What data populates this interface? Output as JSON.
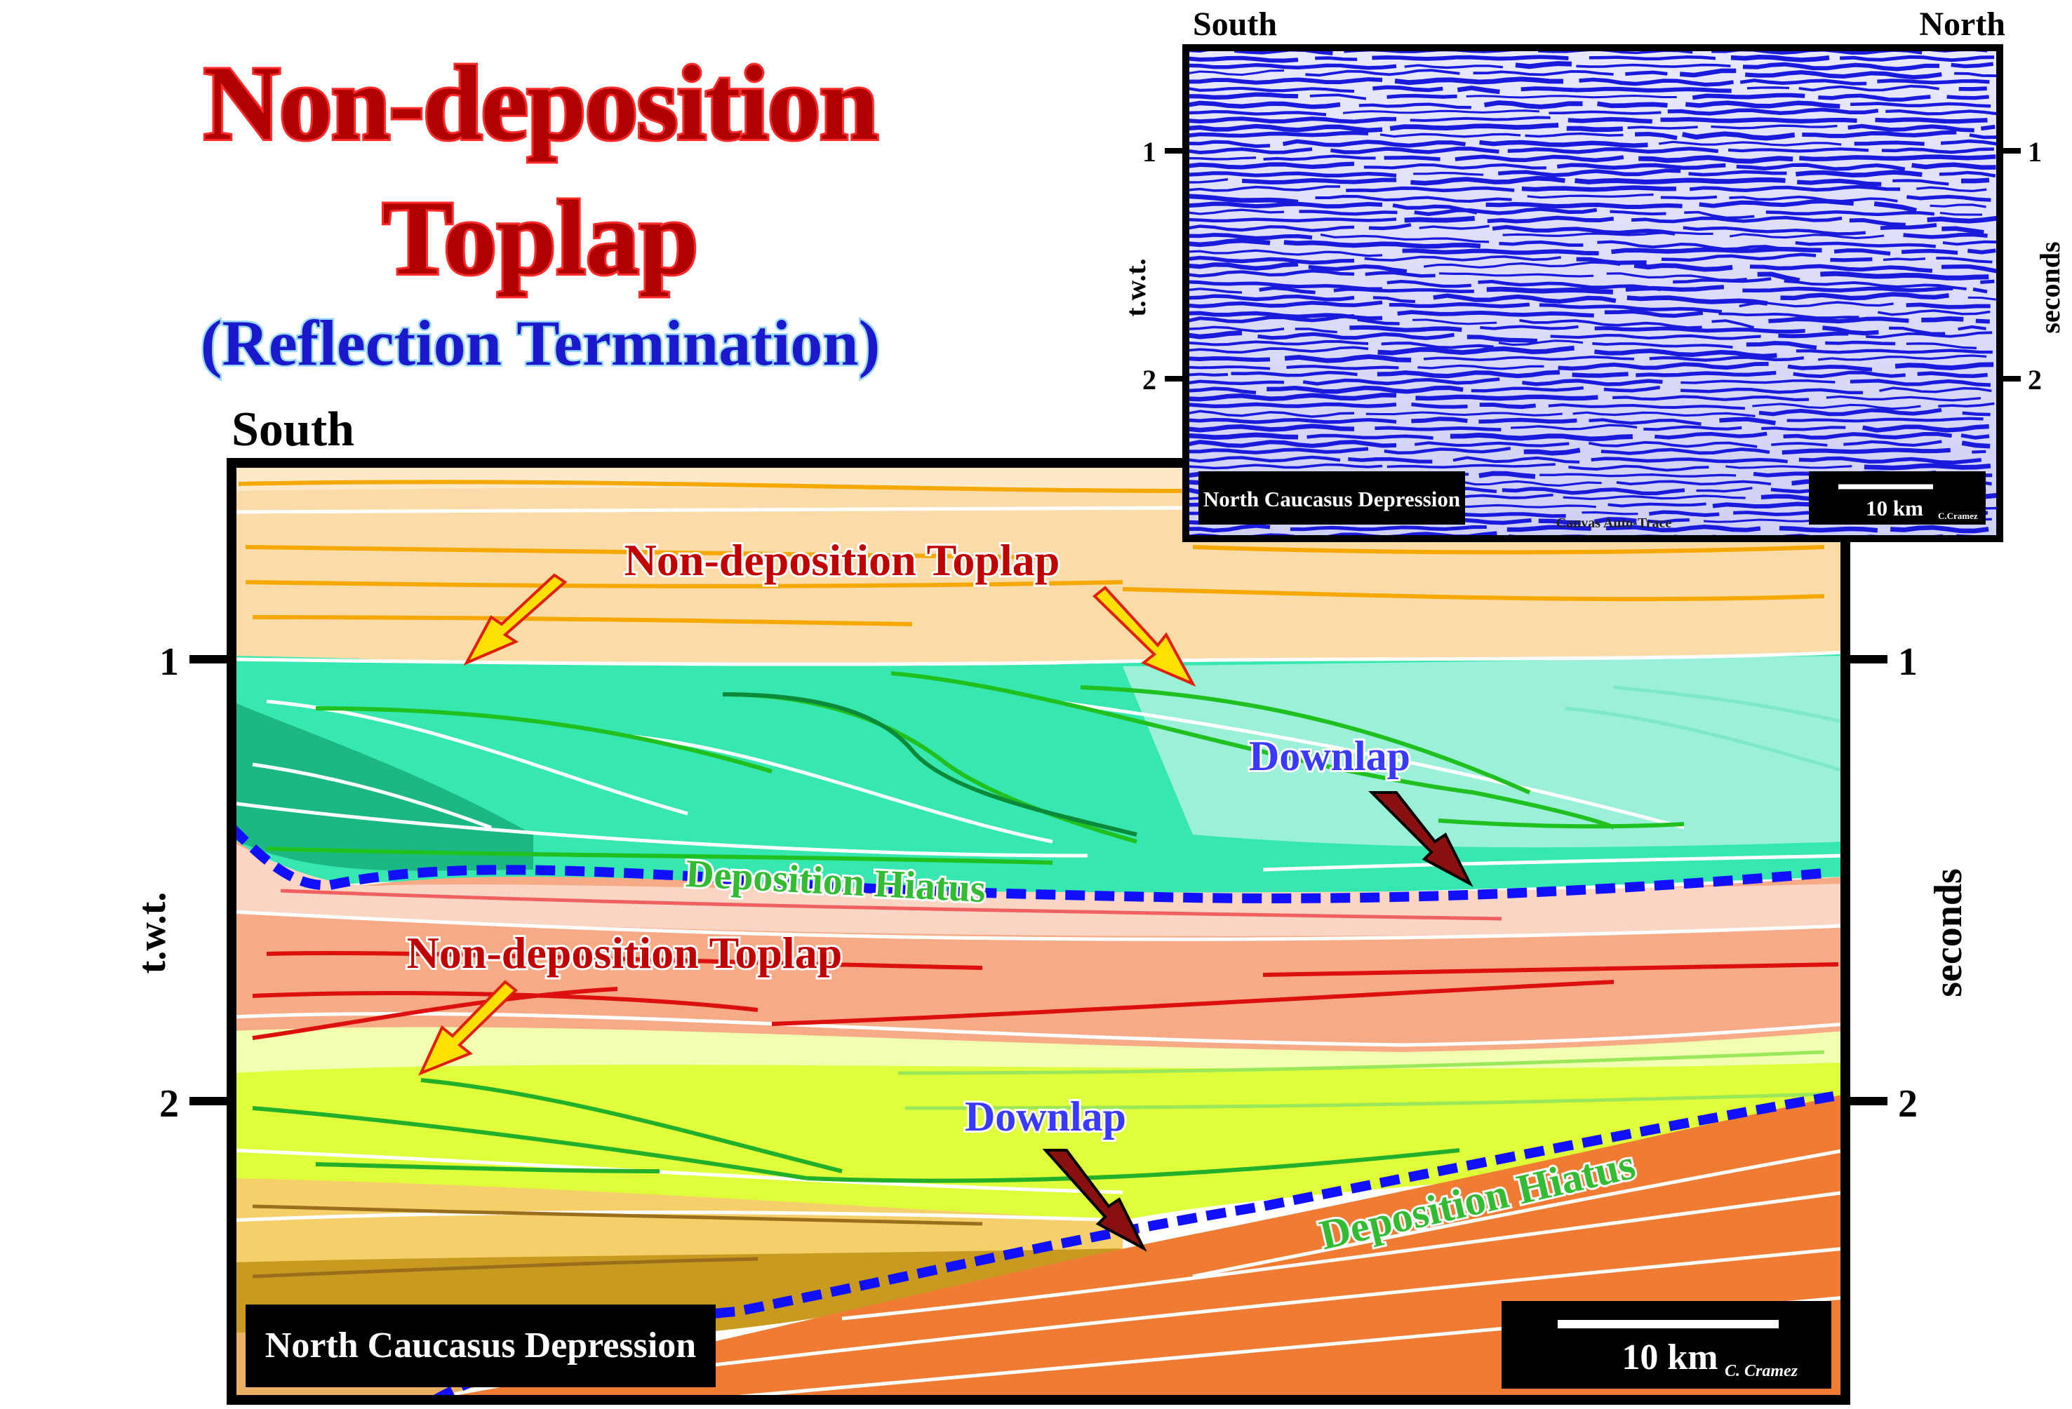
{
  "title": {
    "line1": "Non-deposition",
    "line2": "Toplap",
    "subtitle": "(Reflection Termination)"
  },
  "inset": {
    "left_label": "South",
    "right_label": "North",
    "axis_left_title": "t.w.t.",
    "axis_right_title": "seconds",
    "ticks": [
      "1",
      "2"
    ],
    "location_label": "North Caucasus Depression",
    "scale_label": "10 km",
    "credit": "C.Cramez",
    "footer_note": "Canvas Auto-Trace",
    "trace_color": "#1a1adc"
  },
  "main": {
    "left_label": "South",
    "axis_left_title": "t.w.t.",
    "axis_right_title": "seconds",
    "ticks": [
      "1",
      "2"
    ],
    "location_label": "North Caucasus Depression",
    "scale_label": "10 km",
    "credit": "C. Cramez",
    "annotations": {
      "toplap_upper": "Non-deposition Toplap",
      "toplap_lower": "Non-deposition Toplap",
      "downlap_upper": "Downlap",
      "downlap_lower": "Downlap",
      "hiatus_upper": "Deposition  Hiatus",
      "hiatus_lower": "Deposition Hiatus"
    },
    "colors": {
      "title_fill": "#c00000",
      "title_outline": "#ff2020",
      "subtitle_fill": "#1a1acc",
      "downlap_fill": "#3a3aff",
      "hiatus_fill": "#33bb33",
      "hiatus_line": "#1010ff"
    }
  }
}
